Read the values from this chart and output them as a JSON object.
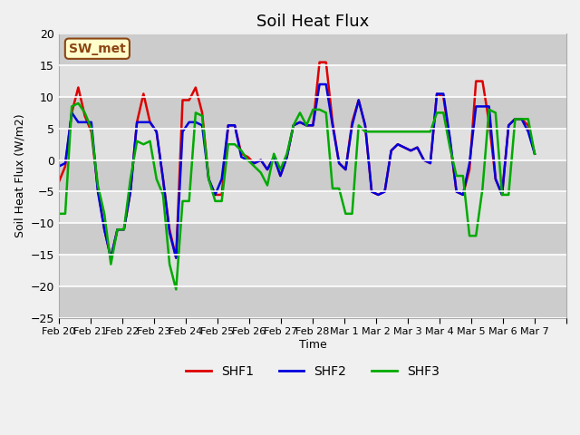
{
  "title": "Soil Heat Flux",
  "ylabel": "Soil Heat Flux (W/m2)",
  "xlabel": "Time",
  "xlim_labels": [
    "Feb 20",
    "Feb 21",
    "Feb 22",
    "Feb 23",
    "Feb 24",
    "Feb 25",
    "Feb 26",
    "Feb 27",
    "Feb 28",
    "Mar 1",
    "Mar 2",
    "Mar 3",
    "Mar 4",
    "Mar 5",
    "Mar 6",
    "Mar 7",
    ""
  ],
  "ylim": [
    -25,
    20
  ],
  "yticks": [
    -25,
    -20,
    -15,
    -10,
    -5,
    0,
    5,
    10,
    15,
    20
  ],
  "annotation_text": "SW_met",
  "annotation_bg": "#ffffcc",
  "annotation_border": "#8b4513",
  "series": {
    "SHF1": {
      "color": "#dd0000",
      "linewidth": 1.8
    },
    "SHF2": {
      "color": "#0000dd",
      "linewidth": 1.8
    },
    "SHF3": {
      "color": "#00aa00",
      "linewidth": 1.8
    }
  },
  "shf1": [
    -3.5,
    -1.0,
    7.5,
    11.5,
    7.0,
    4.5,
    -4.5,
    -11.0,
    -15.5,
    -11.0,
    -11.0,
    -5.0,
    6.0,
    10.5,
    6.0,
    4.5,
    -3.0,
    -11.0,
    -15.5,
    9.5,
    9.5,
    11.5,
    7.5,
    -3.0,
    -5.5,
    -5.5,
    5.5,
    5.5,
    1.0,
    0.5,
    -0.5,
    0.0,
    -1.5,
    0.5,
    -2.5,
    0.5,
    5.5,
    6.0,
    5.5,
    5.5,
    15.5,
    15.5,
    6.0,
    -0.5,
    -1.5,
    6.0,
    9.5,
    5.5,
    -5.0,
    -5.5,
    -5.0,
    1.5,
    2.5,
    2.0,
    1.5,
    2.0,
    0.0,
    -0.5,
    10.5,
    10.0,
    3.0,
    -5.0,
    -5.5,
    -1.5,
    12.5,
    12.5,
    6.0,
    -3.0,
    -5.5,
    5.5,
    6.5,
    6.5,
    5.5,
    1.0
  ],
  "shf2": [
    -1.0,
    -0.5,
    7.5,
    6.0,
    6.0,
    6.0,
    -5.0,
    -11.0,
    -15.5,
    -11.0,
    -11.0,
    -5.0,
    6.0,
    6.0,
    6.0,
    4.5,
    -3.0,
    -11.5,
    -15.5,
    4.5,
    6.0,
    6.0,
    5.5,
    -3.0,
    -5.5,
    -3.0,
    5.5,
    5.5,
    0.5,
    0.0,
    -0.5,
    0.0,
    -1.5,
    0.5,
    -2.5,
    0.5,
    5.5,
    6.0,
    5.5,
    5.5,
    12.0,
    12.0,
    5.5,
    -0.5,
    -1.5,
    5.5,
    9.5,
    5.5,
    -5.0,
    -5.5,
    -5.0,
    1.5,
    2.5,
    2.0,
    1.5,
    2.0,
    0.0,
    -0.5,
    10.5,
    10.5,
    3.5,
    -5.0,
    -5.5,
    -0.5,
    8.5,
    8.5,
    8.5,
    -3.0,
    -5.5,
    5.5,
    6.5,
    6.5,
    4.5,
    1.0
  ],
  "shf3": [
    -8.5,
    -8.5,
    8.5,
    9.0,
    7.5,
    5.0,
    -4.0,
    -8.5,
    -16.5,
    -11.0,
    -11.0,
    -3.0,
    3.0,
    2.5,
    3.0,
    -3.0,
    -5.5,
    -16.5,
    -20.5,
    -6.5,
    -6.5,
    7.5,
    7.0,
    -3.0,
    -6.5,
    -6.5,
    2.5,
    2.5,
    1.5,
    0.0,
    -1.0,
    -2.0,
    -4.0,
    1.0,
    -1.5,
    1.0,
    5.5,
    7.5,
    5.5,
    8.0,
    8.0,
    7.5,
    -4.5,
    -4.5,
    -8.5,
    -8.5,
    5.5,
    4.5,
    4.5,
    4.5,
    4.5,
    4.5,
    4.5,
    4.5,
    4.5,
    4.5,
    4.5,
    4.5,
    7.5,
    7.5,
    2.0,
    -2.5,
    -2.5,
    -12.0,
    -12.0,
    -4.5,
    8.0,
    7.5,
    -5.5,
    -5.5,
    6.5,
    6.5,
    6.5,
    1.0
  ]
}
